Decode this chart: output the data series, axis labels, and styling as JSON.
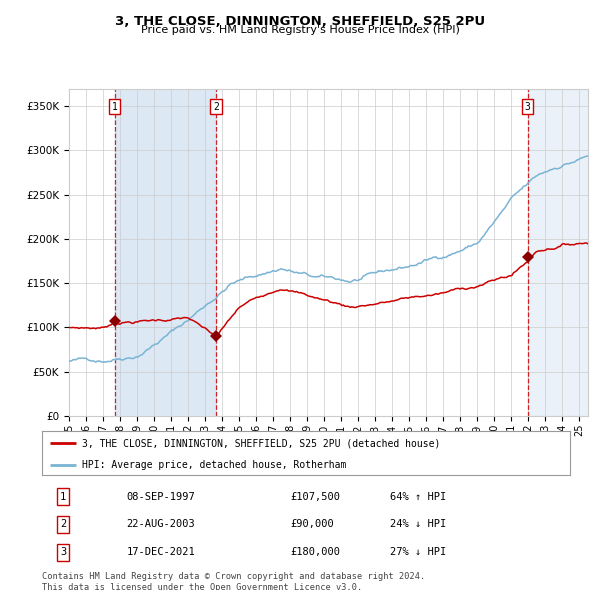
{
  "title": "3, THE CLOSE, DINNINGTON, SHEFFIELD, S25 2PU",
  "subtitle": "Price paid vs. HM Land Registry's House Price Index (HPI)",
  "legend_line1": "3, THE CLOSE, DINNINGTON, SHEFFIELD, S25 2PU (detached house)",
  "legend_line2": "HPI: Average price, detached house, Rotherham",
  "transactions": [
    {
      "num": 1,
      "date": "08-SEP-1997",
      "price": 107500,
      "pct": "64%",
      "dir": "↑",
      "x_year": 1997.69
    },
    {
      "num": 2,
      "date": "22-AUG-2003",
      "price": 90000,
      "pct": "24%",
      "dir": "↓",
      "x_year": 2003.64
    },
    {
      "num": 3,
      "date": "17-DEC-2021",
      "price": 180000,
      "pct": "27%",
      "dir": "↓",
      "x_year": 2021.96
    }
  ],
  "footnote1": "Contains HM Land Registry data © Crown copyright and database right 2024.",
  "footnote2": "This data is licensed under the Open Government Licence v3.0.",
  "hpi_color": "#7ab3d4",
  "price_color": "#cc0000",
  "bg_color": "#ffffff",
  "band_color": "#dce9f5",
  "grid_color": "#cccccc",
  "ylim": [
    0,
    370000
  ],
  "xlim_start": 1995.0,
  "xlim_end": 2025.5
}
